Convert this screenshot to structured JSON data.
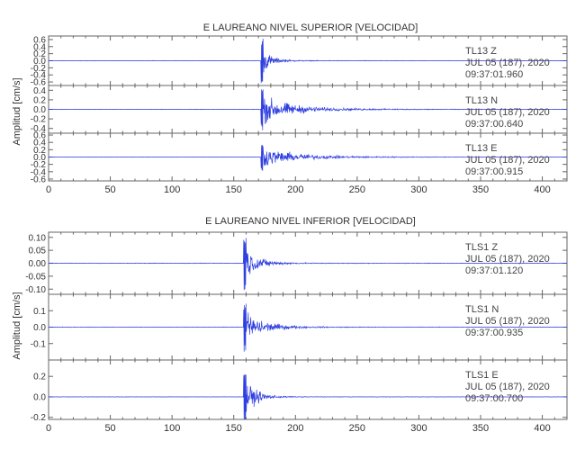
{
  "chart_data": [
    {
      "type": "line",
      "title": "E LAUREANO NIVEL SUPERIOR [VELOCIDAD]",
      "ylabel": "Amplitud [cm/s]",
      "xlabel": "",
      "xlim": [
        0,
        420
      ],
      "x_ticks": [
        0,
        50,
        100,
        150,
        200,
        250,
        300,
        350,
        400
      ],
      "grid": false,
      "panels": [
        {
          "station": "TL13",
          "component": "Z",
          "date": "JUL 05 (187), 2020",
          "time": "09:37:01.960",
          "ylim": [
            -0.7,
            0.7
          ],
          "y_ticks": [
            -0.6,
            -0.4,
            -0.2,
            0.0,
            0.2,
            0.4,
            0.6
          ],
          "y_tick_labels": [
            "-0.6",
            "-0.4",
            "-0.2",
            "0.0",
            "0.2",
            "0.4",
            "0.6"
          ],
          "onset": 172,
          "peak": 0.65,
          "decay": 7,
          "coda_level": 0.02,
          "noise": 0.006,
          "color": "#2f3fe0"
        },
        {
          "station": "TL13",
          "component": "N",
          "date": "JUL 05 (187), 2020",
          "time": "09:37:00.640",
          "ylim": [
            -0.5,
            0.5
          ],
          "y_ticks": [
            -0.4,
            -0.2,
            0.0,
            0.2,
            0.4
          ],
          "y_tick_labels": [
            "-0.4",
            "-0.2",
            "0.0",
            "0.2",
            "0.4"
          ],
          "onset": 172,
          "peak": 0.45,
          "decay": 20,
          "coda_level": 0.04,
          "noise": 0.006,
          "color": "#2f3fe0"
        },
        {
          "station": "TL13",
          "component": "E",
          "date": "JUL 05 (187), 2020",
          "time": "09:37:00.915",
          "ylim": [
            -0.65,
            0.65
          ],
          "y_ticks": [
            -0.6,
            -0.4,
            -0.2,
            0.0,
            0.2,
            0.4,
            0.6
          ],
          "y_tick_labels": [
            "-0.6",
            "-0.4",
            "-0.2",
            "0.0",
            "0.2",
            "0.4",
            "0.6"
          ],
          "onset": 172,
          "peak": 0.38,
          "decay": 25,
          "coda_level": 0.04,
          "noise": 0.006,
          "color": "#2f3fe0"
        }
      ]
    },
    {
      "type": "line",
      "title": "E LAUREANO NIVEL INFERIOR [VELOCIDAD]",
      "ylabel": "Amplitud [cm/s]",
      "xlabel": "",
      "xlim": [
        0,
        420
      ],
      "x_ticks": [
        0,
        50,
        100,
        150,
        200,
        250,
        300,
        350,
        400
      ],
      "grid": false,
      "panels": [
        {
          "station": "TLS1",
          "component": "Z",
          "date": "JUL 05 (187), 2020",
          "time": "09:37:01.120",
          "ylim": [
            -0.12,
            0.12
          ],
          "y_ticks": [
            -0.1,
            -0.05,
            0.0,
            0.05,
            0.1
          ],
          "y_tick_labels": [
            "-0.10",
            "-0.05",
            "0.00",
            "0.05",
            "0.10"
          ],
          "onset": 158,
          "peak": 0.11,
          "decay": 10,
          "coda_level": 0.004,
          "noise": 0.0015,
          "color": "#2f3fe0"
        },
        {
          "station": "TLS1",
          "component": "N",
          "date": "JUL 05 (187), 2020",
          "time": "09:37:00.935",
          "ylim": [
            -0.2,
            0.2
          ],
          "y_ticks": [
            -0.1,
            0.0,
            0.1
          ],
          "y_tick_labels": [
            "-0.1",
            "0.0",
            "0.1"
          ],
          "onset": 158,
          "peak": 0.15,
          "decay": 15,
          "coda_level": 0.006,
          "noise": 0.002,
          "color": "#2f3fe0"
        },
        {
          "station": "TLS1",
          "component": "E",
          "date": "JUL 05 (187), 2020",
          "time": "09:37:00.700",
          "ylim": [
            -0.22,
            0.36
          ],
          "y_ticks": [
            -0.2,
            0.0,
            0.2
          ],
          "y_tick_labels": [
            "-0.2",
            "0.0",
            "0.2"
          ],
          "onset": 158,
          "peak": 0.3,
          "decay": 9,
          "coda_level": 0.005,
          "noise": 0.002,
          "color": "#2f3fe0"
        }
      ]
    }
  ]
}
